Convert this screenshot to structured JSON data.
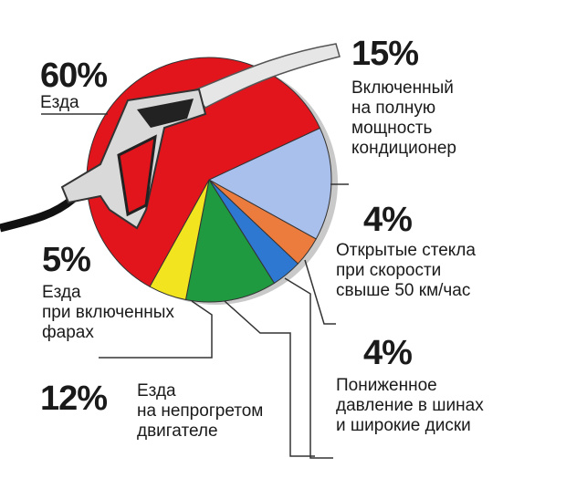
{
  "chart_data": {
    "type": "pie",
    "slices": [
      {
        "value": 15,
        "label": "15%",
        "text": [
          "Включенный",
          "на полную",
          "мощность",
          "кондиционер"
        ],
        "color": "#a9bfec"
      },
      {
        "value": 4,
        "label": "4%",
        "text": [
          "Открытые стекла",
          "при скорости",
          "свыше 50 км/час"
        ],
        "color": "#ec7b3e"
      },
      {
        "value": 4,
        "label": "4%",
        "text": [
          "Пониженное",
          "давление в шинах",
          "и широкие диски"
        ],
        "color": "#2f78d2"
      },
      {
        "value": 12,
        "label": "12%",
        "text": [
          "Езда",
          "на непрогретом",
          "двигателе"
        ],
        "color": "#1f9a40"
      },
      {
        "value": 5,
        "label": "5%",
        "text": [
          "Езда",
          "при включенных",
          "фарах"
        ],
        "color": "#f2e41f"
      },
      {
        "value": 60,
        "label": "60%",
        "text": [
          "Езда"
        ],
        "color": "#e2141c"
      }
    ]
  }
}
